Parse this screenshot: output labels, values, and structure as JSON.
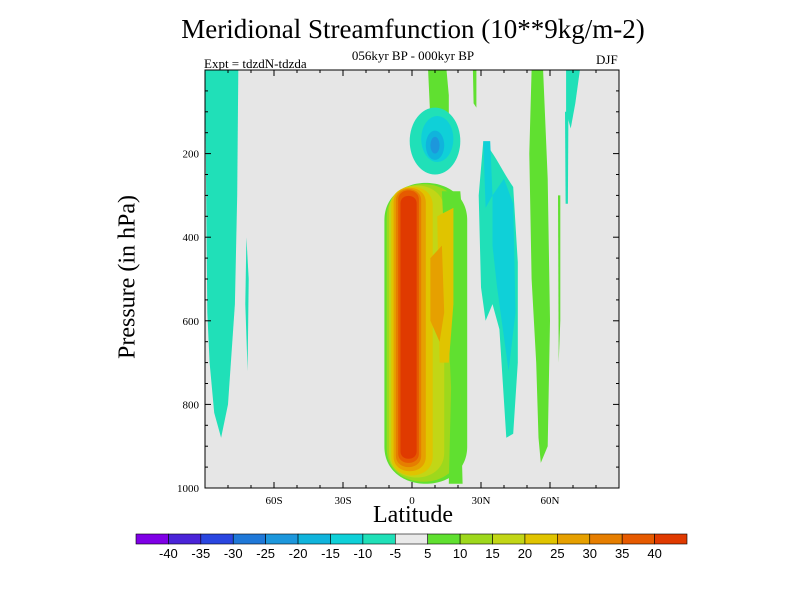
{
  "chart_data": {
    "type": "heatmap",
    "title": "Meridional Streamfunction (10**9kg/m-2)",
    "subtitle": "056kyr BP - 000kyr BP",
    "experiment_label": "Expt = tdzdN-tdzda",
    "season": "DJF",
    "xlabel": "Latitude",
    "ylabel": "Pressure (in hPa)",
    "xlim": [
      -90,
      90
    ],
    "ylim": [
      1000,
      0
    ],
    "x_ticks": [
      {
        "value": -60,
        "label": "60S"
      },
      {
        "value": -30,
        "label": "30S"
      },
      {
        "value": 0,
        "label": "0"
      },
      {
        "value": 30,
        "label": "30N"
      },
      {
        "value": 60,
        "label": "60N"
      }
    ],
    "y_ticks": [
      {
        "value": 200,
        "label": "200"
      },
      {
        "value": 400,
        "label": "400"
      },
      {
        "value": 600,
        "label": "600"
      },
      {
        "value": 800,
        "label": "800"
      },
      {
        "value": 1000,
        "label": "1000"
      }
    ],
    "background_color": "#e6e6e6",
    "colorbar": {
      "levels": [
        -40,
        -35,
        -30,
        -25,
        -20,
        -15,
        -10,
        -5,
        5,
        10,
        15,
        20,
        25,
        30,
        35,
        40
      ],
      "labels": [
        "-40",
        "-35",
        "-30",
        "-25",
        "-20",
        "-15",
        "-10",
        "-5",
        "5",
        "10",
        "15",
        "20",
        "25",
        "30",
        "35",
        "40"
      ],
      "colors": [
        "#7f00e6",
        "#4a24d8",
        "#2a46e0",
        "#1f78d8",
        "#1d97dc",
        "#10b4dc",
        "#0fd0d8",
        "#20e0b8",
        "#eaeaea",
        "#60e030",
        "#9ed81c",
        "#c2d616",
        "#e0c400",
        "#e6a000",
        "#e67e00",
        "#e65a00",
        "#e03a00"
      ]
    },
    "features": [
      {
        "name": "tropical-cell",
        "lat_range": [
          -12,
          24
        ],
        "pressure_range": [
          270,
          990
        ],
        "peak_value": 40,
        "peak_lat": 0,
        "peak_pressure": 650
      },
      {
        "name": "nh-subtropical-positive-band",
        "lat_range": [
          52,
          60
        ],
        "pressure_range": [
          0,
          940
        ],
        "value": 5
      },
      {
        "name": "nh-negative-band",
        "lat_range": [
          28,
          46
        ],
        "pressure_range": [
          200,
          880
        ],
        "value": -10
      },
      {
        "name": "upper-negative-blob",
        "lat_range": [
          -2,
          20
        ],
        "pressure_range": [
          100,
          310
        ],
        "peak_value": -20
      },
      {
        "name": "sh-negative-band",
        "lat_range": [
          -90,
          -76
        ],
        "pressure_range": [
          0,
          880
        ],
        "value": -5
      },
      {
        "name": "high-lat-nh-negative",
        "lat_range": [
          67,
          74
        ],
        "pressure_range": [
          0,
          140
        ],
        "value": -5
      }
    ]
  }
}
